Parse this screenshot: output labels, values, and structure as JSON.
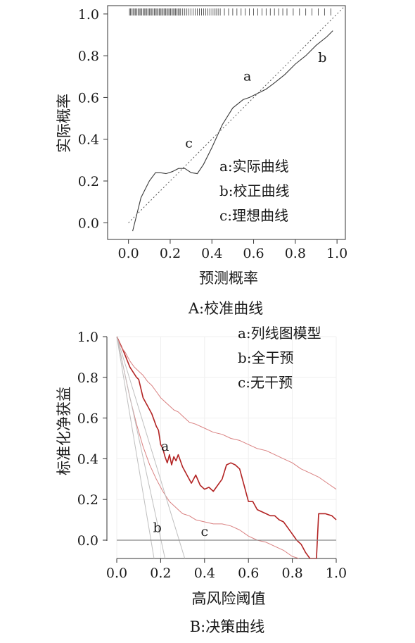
{
  "chart_data": [
    {
      "type": "line",
      "caption": "A:校准曲线",
      "xlabel": "预测概率",
      "ylabel": "实际概率",
      "xlim": [
        -0.1,
        1.04
      ],
      "ylim": [
        -0.08,
        1.04
      ],
      "xticks": [
        "0.0",
        "0.2",
        "0.4",
        "0.6",
        "0.8",
        "1.0"
      ],
      "yticks": [
        "0.0",
        "0.2",
        "0.4",
        "0.6",
        "0.8",
        "1.0"
      ],
      "grid": false,
      "legend_position": "bottom-right",
      "legend": [
        "a:实际曲线",
        "b:校正曲线",
        "c:理想曲线"
      ],
      "annotations": [
        {
          "text": "a",
          "x": 0.57,
          "y": 0.68
        },
        {
          "text": "b",
          "x": 0.93,
          "y": 0.77
        },
        {
          "text": "c",
          "x": 0.29,
          "y": 0.36
        }
      ],
      "series": [
        {
          "key": "apparent",
          "color": "#3a3a3a",
          "style": "solid",
          "x": [
            0.02,
            0.06,
            0.1,
            0.13,
            0.15,
            0.18,
            0.21,
            0.24,
            0.27,
            0.3,
            0.33,
            0.36,
            0.4,
            0.45,
            0.5,
            0.55,
            0.58,
            0.62,
            0.66,
            0.7,
            0.75,
            0.8,
            0.85,
            0.9,
            0.95,
            0.98
          ],
          "y": [
            -0.04,
            0.12,
            0.2,
            0.24,
            0.24,
            0.235,
            0.245,
            0.26,
            0.26,
            0.24,
            0.235,
            0.28,
            0.36,
            0.47,
            0.55,
            0.59,
            0.6,
            0.62,
            0.64,
            0.67,
            0.71,
            0.76,
            0.8,
            0.85,
            0.89,
            0.92
          ]
        },
        {
          "key": "ideal",
          "color": "#555555",
          "style": "dotted",
          "x": [
            0.0,
            1.04
          ],
          "y": [
            0.0,
            1.04
          ]
        }
      ],
      "rug": [
        0.005,
        0.01,
        0.016,
        0.022,
        0.028,
        0.034,
        0.04,
        0.046,
        0.052,
        0.058,
        0.064,
        0.07,
        0.076,
        0.082,
        0.088,
        0.094,
        0.1,
        0.106,
        0.112,
        0.118,
        0.124,
        0.13,
        0.136,
        0.142,
        0.148,
        0.154,
        0.16,
        0.166,
        0.172,
        0.178,
        0.184,
        0.19,
        0.196,
        0.202,
        0.208,
        0.214,
        0.22,
        0.226,
        0.232,
        0.238,
        0.244,
        0.25,
        0.26,
        0.27,
        0.28,
        0.29,
        0.3,
        0.31,
        0.32,
        0.33,
        0.34,
        0.35,
        0.36,
        0.37,
        0.38,
        0.39,
        0.4,
        0.41,
        0.42,
        0.43,
        0.44,
        0.46,
        0.48,
        0.5,
        0.52,
        0.54,
        0.56,
        0.58,
        0.6,
        0.62,
        0.64,
        0.66,
        0.68,
        0.7,
        0.72,
        0.74,
        0.76,
        0.79,
        0.82,
        0.85,
        0.88,
        0.91,
        0.94,
        0.97
      ]
    },
    {
      "type": "line",
      "caption": "B:决策曲线",
      "xlabel": "高风险阈值",
      "ylabel": "标准化净获益",
      "xlim": [
        -0.04,
        1.03
      ],
      "ylim": [
        -0.09,
        1.0
      ],
      "xticks": [
        "0.0",
        "0.2",
        "0.4",
        "0.6",
        "0.8",
        "1.0"
      ],
      "yticks": [
        "0.0",
        "0.2",
        "0.4",
        "0.6",
        "0.8",
        "1.0"
      ],
      "grid": true,
      "legend_position": "top-right",
      "legend": [
        "a:列线图模型",
        "b:全干预",
        "c:无干预"
      ],
      "annotations": [
        {
          "text": "a",
          "x": 0.22,
          "y": 0.44
        },
        {
          "text": "b",
          "x": 0.185,
          "y": 0.04
        },
        {
          "text": "c",
          "x": 0.4,
          "y": 0.02
        }
      ],
      "series": [
        {
          "key": "nomogram",
          "color": "#b22222",
          "width": 1.6,
          "x": [
            0.0,
            0.03,
            0.06,
            0.09,
            0.1,
            0.12,
            0.14,
            0.16,
            0.18,
            0.19,
            0.2,
            0.21,
            0.22,
            0.23,
            0.24,
            0.25,
            0.26,
            0.27,
            0.28,
            0.3,
            0.32,
            0.34,
            0.36,
            0.38,
            0.4,
            0.42,
            0.44,
            0.46,
            0.48,
            0.5,
            0.52,
            0.54,
            0.56,
            0.58,
            0.6,
            0.62,
            0.64,
            0.66,
            0.68,
            0.7,
            0.72,
            0.74,
            0.76,
            0.78,
            0.8,
            0.82,
            0.84,
            0.86,
            0.88,
            0.9,
            0.91,
            0.92,
            0.95,
            0.98,
            1.0
          ],
          "y": [
            1.0,
            0.93,
            0.85,
            0.8,
            0.79,
            0.7,
            0.66,
            0.62,
            0.56,
            0.54,
            0.47,
            0.45,
            0.41,
            0.38,
            0.42,
            0.37,
            0.41,
            0.39,
            0.42,
            0.36,
            0.32,
            0.28,
            0.32,
            0.27,
            0.25,
            0.26,
            0.24,
            0.27,
            0.3,
            0.37,
            0.38,
            0.37,
            0.35,
            0.27,
            0.19,
            0.19,
            0.15,
            0.14,
            0.13,
            0.12,
            0.12,
            0.1,
            0.09,
            0.06,
            0.03,
            0.0,
            -0.02,
            -0.06,
            -0.09,
            -0.09,
            -0.09,
            0.13,
            0.13,
            0.12,
            0.1
          ]
        },
        {
          "key": "nomogram_upper",
          "color": "#d98080",
          "width": 1.0,
          "x": [
            0.0,
            0.02,
            0.04,
            0.06,
            0.08,
            0.1,
            0.12,
            0.14,
            0.16,
            0.18,
            0.2,
            0.22,
            0.24,
            0.26,
            0.28,
            0.3,
            0.33,
            0.36,
            0.4,
            0.44,
            0.48,
            0.52,
            0.56,
            0.6,
            0.64,
            0.68,
            0.72,
            0.76,
            0.8,
            0.84,
            0.88,
            0.92,
            0.96,
            1.0
          ],
          "y": [
            1.0,
            0.95,
            0.92,
            0.88,
            0.85,
            0.83,
            0.81,
            0.78,
            0.76,
            0.73,
            0.7,
            0.68,
            0.66,
            0.64,
            0.63,
            0.61,
            0.58,
            0.57,
            0.55,
            0.53,
            0.52,
            0.5,
            0.49,
            0.47,
            0.45,
            0.44,
            0.42,
            0.4,
            0.38,
            0.35,
            0.33,
            0.31,
            0.28,
            0.25
          ]
        },
        {
          "key": "nomogram_lower",
          "color": "#d98080",
          "width": 1.0,
          "x": [
            0.0,
            0.03,
            0.06,
            0.09,
            0.12,
            0.15,
            0.18,
            0.21,
            0.24,
            0.27,
            0.3,
            0.33,
            0.36,
            0.4,
            0.44,
            0.48,
            0.52,
            0.56,
            0.6,
            0.64,
            0.68,
            0.72,
            0.76,
            0.8,
            0.83
          ],
          "y": [
            1.0,
            0.85,
            0.7,
            0.57,
            0.46,
            0.37,
            0.3,
            0.24,
            0.19,
            0.16,
            0.13,
            0.12,
            0.1,
            0.09,
            0.08,
            0.08,
            0.07,
            0.05,
            0.02,
            0.0,
            -0.01,
            -0.03,
            -0.05,
            -0.08,
            -0.09
          ]
        },
        {
          "key": "treat_all",
          "color": "#bfbfbf",
          "width": 1.0,
          "x": [
            0.0,
            0.17
          ],
          "y": [
            1.0,
            -0.09
          ]
        },
        {
          "key": "treat_all_alt1",
          "color": "#bfbfbf",
          "width": 1.0,
          "x": [
            0.0,
            0.22
          ],
          "y": [
            1.0,
            -0.09
          ]
        },
        {
          "key": "treat_all_alt2",
          "color": "#bfbfbf",
          "width": 1.0,
          "x": [
            0.0,
            0.31
          ],
          "y": [
            1.0,
            -0.09
          ]
        },
        {
          "key": "treat_none",
          "color": "#888888",
          "width": 1.2,
          "x": [
            0.0,
            1.0
          ],
          "y": [
            0.0,
            0.0
          ]
        }
      ]
    }
  ]
}
